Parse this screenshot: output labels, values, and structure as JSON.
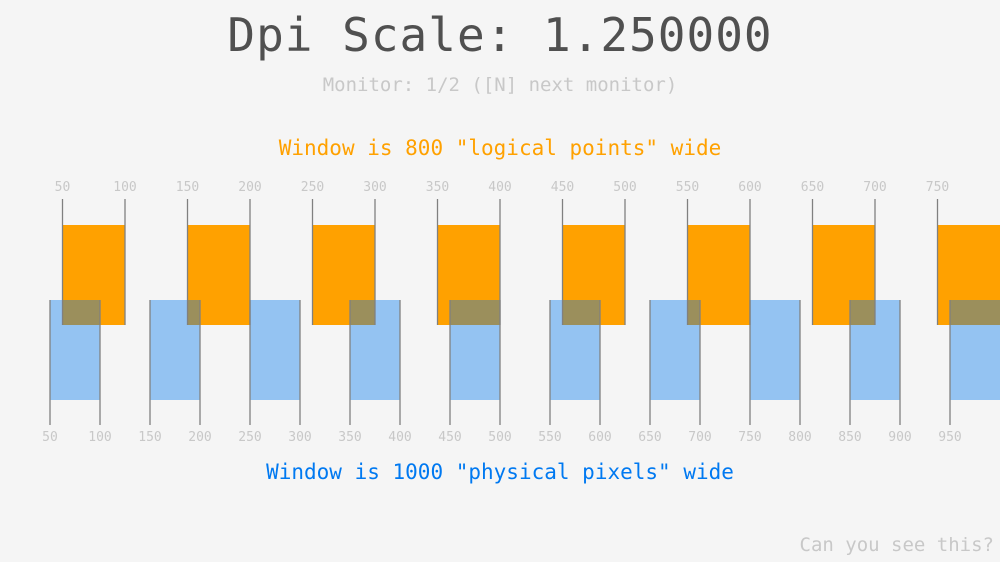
{
  "title": "Dpi Scale: 1.250000",
  "subtitle": "Monitor: 1/2 ([N] next monitor)",
  "logical_caption": "Window is 800 \"logical points\" wide",
  "physical_caption": "Window is 1000 \"physical pixels\" wide",
  "corner_text": "Can you see this?",
  "dpi_scale": 1.25,
  "logical_ticks": [
    "50",
    "100",
    "150",
    "200",
    "250",
    "300",
    "350",
    "400",
    "450",
    "500",
    "550",
    "600",
    "650",
    "700",
    "750"
  ],
  "physical_ticks": [
    "50",
    "100",
    "150",
    "200",
    "250",
    "300",
    "350",
    "400",
    "450",
    "500",
    "550",
    "600",
    "650",
    "700",
    "750",
    "800",
    "850",
    "900",
    "950"
  ],
  "colors": {
    "background": "#f5f5f5",
    "logical_box": "#ffa100",
    "physical_box": "#94c3f2",
    "overlap": "#9b8f5c",
    "line": "#808080",
    "tick_label": "#c8c8c8",
    "title": "#505050",
    "logical_text": "#ffa100",
    "physical_text": "#0079f1"
  }
}
